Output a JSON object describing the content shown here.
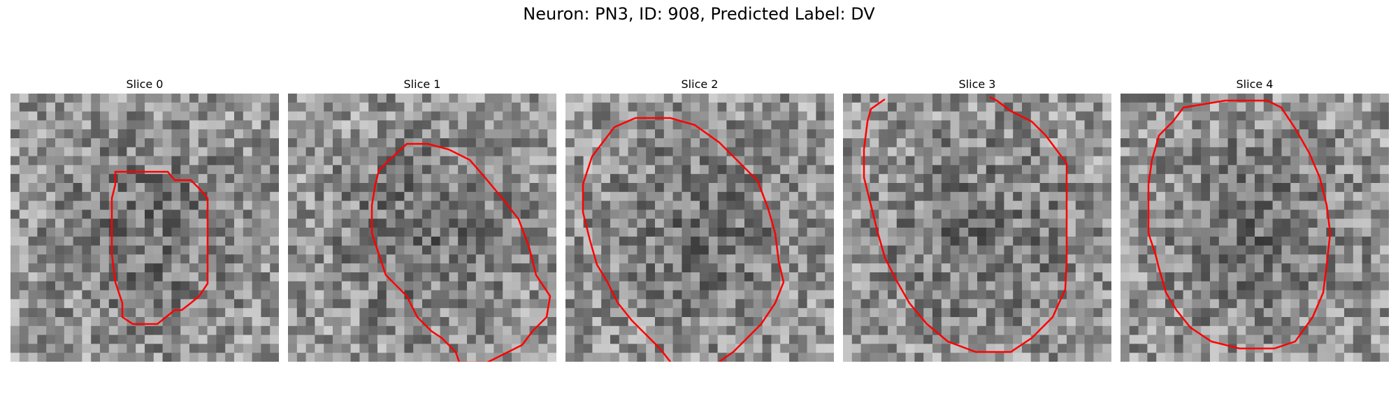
{
  "figure": {
    "title": "Neuron: PN3, ID: 908, Predicted Label: DV",
    "contour_color": "#ff0000"
  },
  "slices": [
    {
      "title": "Slice 0"
    },
    {
      "title": "Slice 1"
    },
    {
      "title": "Slice 2"
    },
    {
      "title": "Slice 3"
    },
    {
      "title": "Slice 4"
    }
  ]
}
